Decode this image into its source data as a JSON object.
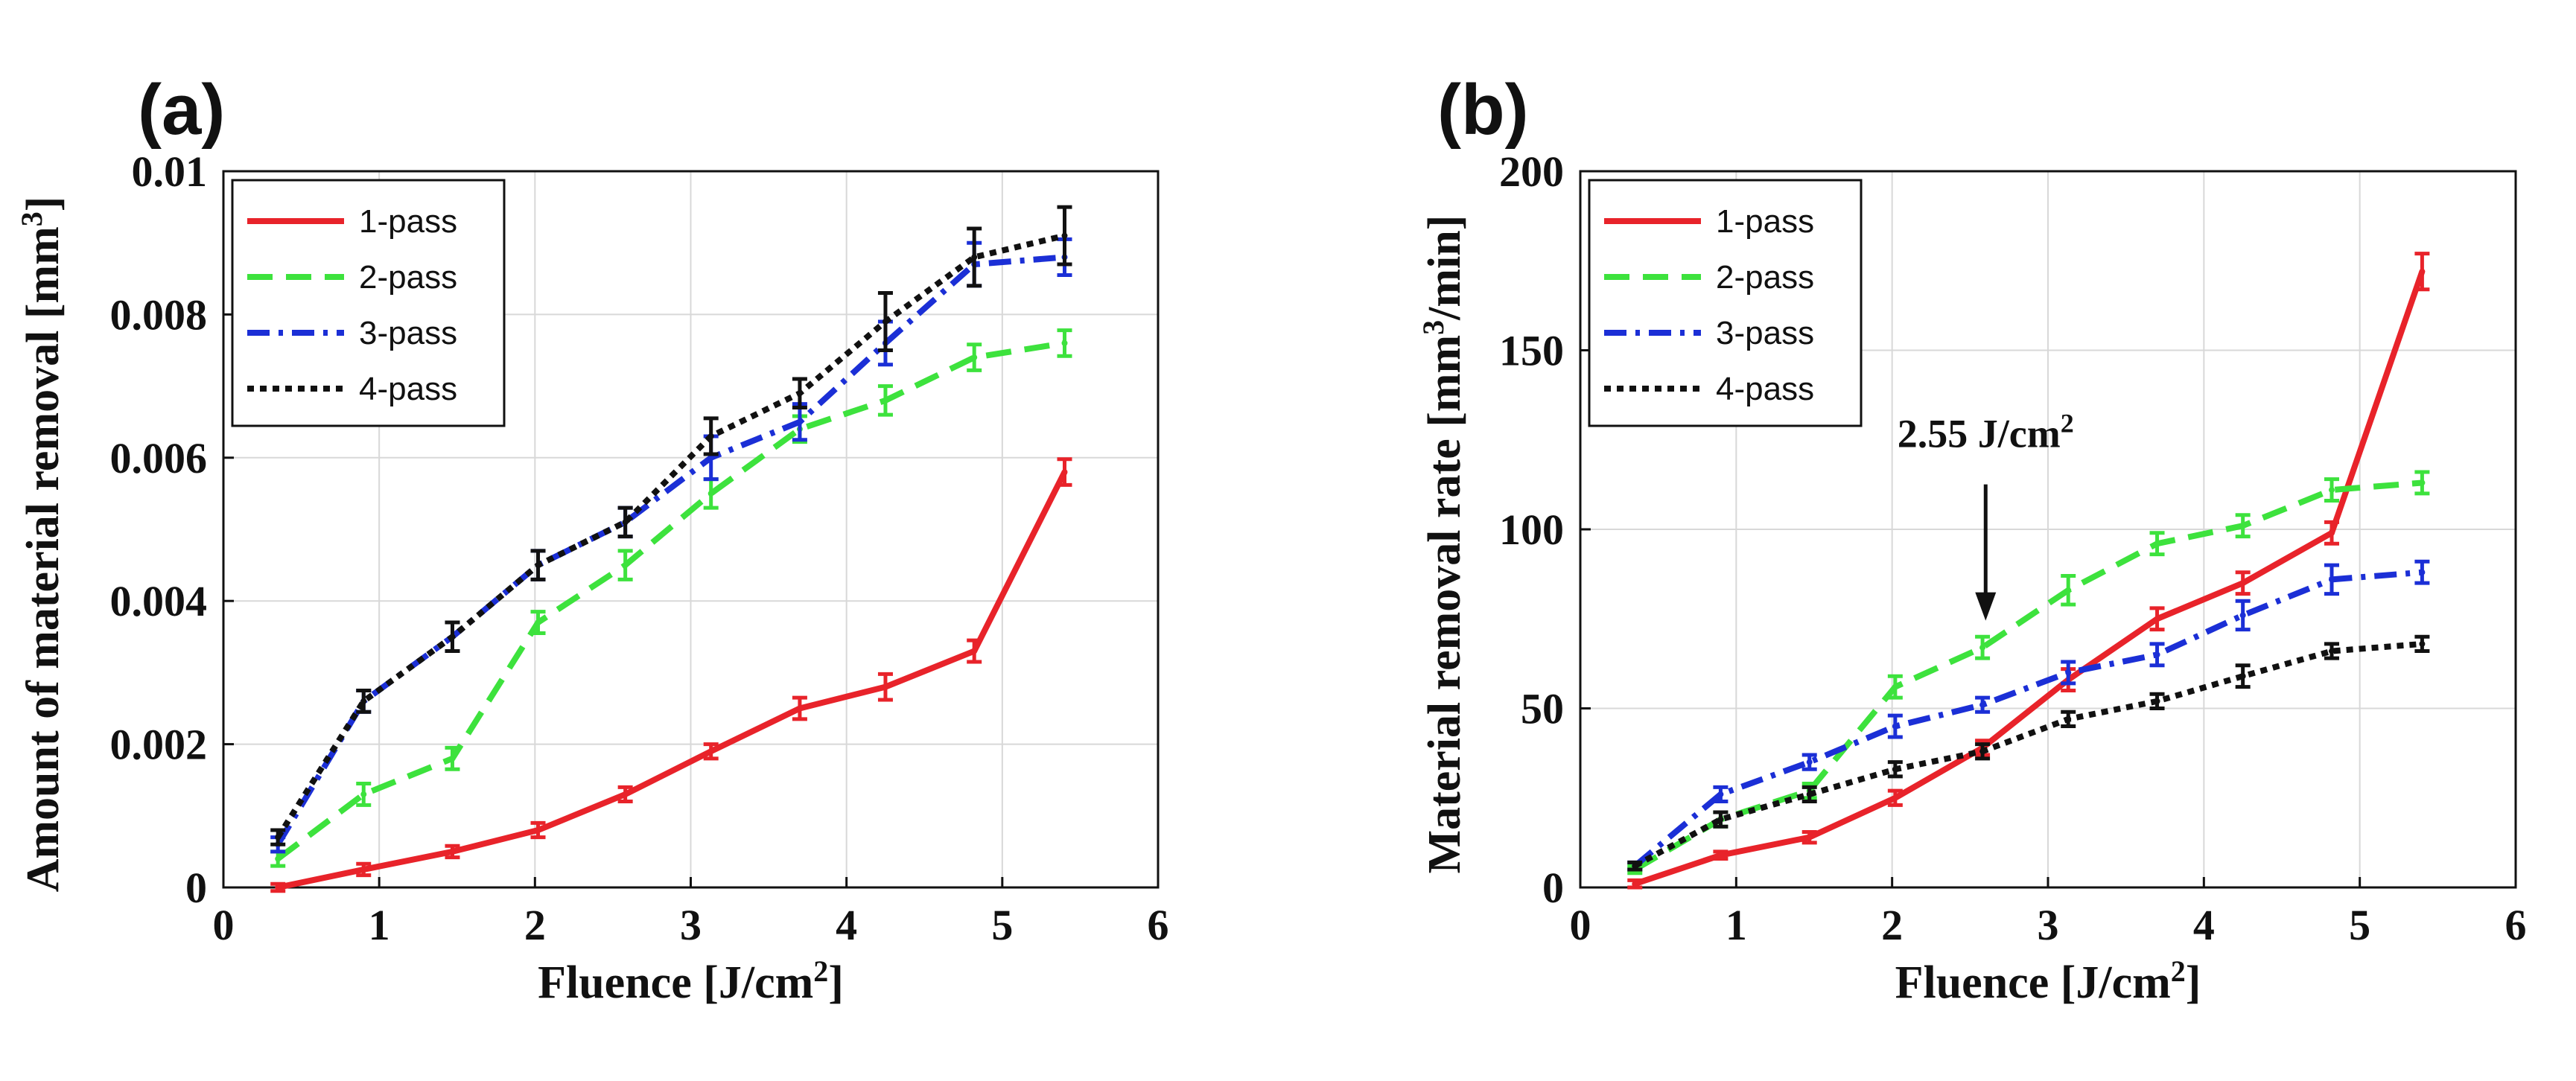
{
  "chart_data": [
    {
      "panel_label": "(a)",
      "type": "line",
      "title": "",
      "xlabel": "Fluence [J/cm",
      "xlabel_sup": "2",
      "xlabel_end": "]",
      "ylabel": "Amount of material removal [mm",
      "ylabel_sup": "3",
      "ylabel_end": "]",
      "xlim": [
        0,
        6
      ],
      "ylim": [
        0,
        0.01
      ],
      "xticks": [
        0,
        1,
        2,
        3,
        4,
        5,
        6
      ],
      "yticks": [
        0,
        0.002,
        0.004,
        0.006,
        0.008,
        0.01
      ],
      "yticklabels": [
        "0",
        "0.002",
        "0.004",
        "0.006",
        "0.008",
        "0.01"
      ],
      "grid": true,
      "legend_position": "top-left",
      "x": [
        0.35,
        0.9,
        1.47,
        2.02,
        2.58,
        3.13,
        3.7,
        4.25,
        4.82,
        5.4
      ],
      "series": [
        {
          "name": "1-pass",
          "color": "#e8232a",
          "dash": "solid",
          "values": [
            0.0,
            0.00025,
            0.0005,
            0.0008,
            0.0013,
            0.0019,
            0.0025,
            0.0028,
            0.0033,
            0.0058
          ],
          "errors": [
            5e-05,
            8e-05,
            8e-05,
            0.0001,
            0.0001,
            0.0001,
            0.00015,
            0.00018,
            0.00015,
            0.00018
          ]
        },
        {
          "name": "2-pass",
          "color": "#3de23d",
          "dash": "dashed",
          "values": [
            0.0004,
            0.0013,
            0.0018,
            0.0037,
            0.0045,
            0.0055,
            0.0064,
            0.0068,
            0.0074,
            0.0076
          ],
          "errors": [
            0.0001,
            0.00015,
            0.00015,
            0.00015,
            0.0002,
            0.0002,
            0.00018,
            0.0002,
            0.00018,
            0.00018
          ]
        },
        {
          "name": "3-pass",
          "color": "#1b2fd6",
          "dash": "dashdot",
          "values": [
            0.0006,
            0.0026,
            0.0035,
            0.0045,
            0.0051,
            0.006,
            0.0065,
            0.0076,
            0.0087,
            0.0088
          ],
          "errors": [
            0.0001,
            0.00015,
            0.0002,
            0.0002,
            0.0002,
            0.0003,
            0.00025,
            0.0003,
            0.0003,
            0.00025
          ]
        },
        {
          "name": "4-pass",
          "color": "#111111",
          "dash": "dotted",
          "values": [
            0.0007,
            0.0026,
            0.0035,
            0.0045,
            0.0051,
            0.0063,
            0.0069,
            0.0079,
            0.0088,
            0.0091
          ],
          "errors": [
            0.0001,
            0.00015,
            0.0002,
            0.0002,
            0.0002,
            0.00025,
            0.0002,
            0.0004,
            0.0004,
            0.0004
          ]
        }
      ]
    },
    {
      "panel_label": "(b)",
      "type": "line",
      "title": "",
      "xlabel": "Fluence [J/cm",
      "xlabel_sup": "2",
      "xlabel_end": "]",
      "ylabel": "Material removal rate [mm",
      "ylabel_sup": "3",
      "ylabel_end": "/min]",
      "xlim": [
        0,
        6
      ],
      "ylim": [
        0,
        200
      ],
      "xticks": [
        0,
        1,
        2,
        3,
        4,
        5,
        6
      ],
      "yticks": [
        0,
        50,
        100,
        150,
        200
      ],
      "yticklabels": [
        "0",
        "50",
        "100",
        "150",
        "200"
      ],
      "grid": true,
      "legend_position": "top-left",
      "annotation": {
        "text": "2.55 J/cm",
        "sup": "2",
        "x": 2.6,
        "y": 72
      },
      "x": [
        0.35,
        0.9,
        1.47,
        2.02,
        2.58,
        3.13,
        3.7,
        4.25,
        4.82,
        5.4
      ],
      "series": [
        {
          "name": "1-pass",
          "color": "#e8232a",
          "dash": "solid",
          "values": [
            1,
            9,
            14,
            25,
            39,
            58,
            75,
            85,
            99,
            172
          ],
          "errors": [
            1,
            1,
            1.5,
            2,
            2,
            3,
            3,
            3,
            3,
            5
          ]
        },
        {
          "name": "2-pass",
          "color": "#3de23d",
          "dash": "dashed",
          "values": [
            5,
            19,
            27,
            56,
            67,
            83,
            96,
            101,
            111,
            113
          ],
          "errors": [
            1,
            2,
            2,
            3,
            3,
            4,
            3,
            3,
            3,
            3
          ]
        },
        {
          "name": "3-pass",
          "color": "#1b2fd6",
          "dash": "dashdot",
          "values": [
            6,
            26,
            35,
            45,
            51,
            60,
            65,
            76,
            86,
            88
          ],
          "errors": [
            1,
            2,
            2,
            3,
            2,
            3,
            3,
            4,
            4,
            3
          ]
        },
        {
          "name": "4-pass",
          "color": "#111111",
          "dash": "dotted",
          "values": [
            6,
            19,
            26,
            33,
            38,
            47,
            52,
            59,
            66,
            68
          ],
          "errors": [
            1,
            2,
            2,
            2,
            2,
            2,
            2,
            3,
            2,
            2
          ]
        }
      ]
    }
  ]
}
